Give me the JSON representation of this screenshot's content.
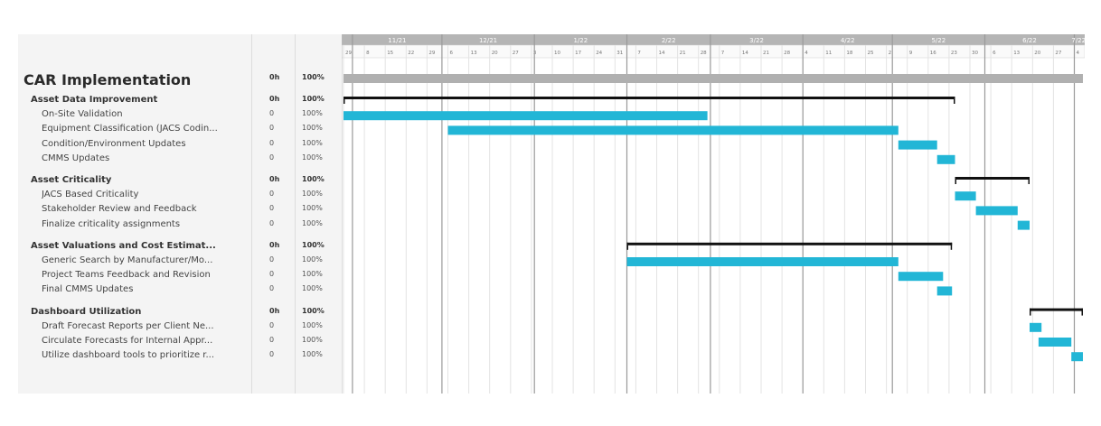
{
  "project": {
    "name": "CAR Implementation",
    "work": "0h",
    "complete": "100%"
  },
  "groups": [
    {
      "name": "Asset Data Improvement",
      "work": "0h",
      "complete": "100%",
      "tasks": [
        {
          "name": "On-Site Validation",
          "work": "0",
          "complete": "100%"
        },
        {
          "name": "Equipment Classification (JACS Codin...",
          "work": "0",
          "complete": "100%"
        },
        {
          "name": "Condition/Environment Updates",
          "work": "0",
          "complete": "100%"
        },
        {
          "name": "CMMS Updates",
          "work": "0",
          "complete": "100%"
        }
      ]
    },
    {
      "name": "Asset Criticality",
      "work": "0h",
      "complete": "100%",
      "tasks": [
        {
          "name": "JACS Based Criticality",
          "work": "0",
          "complete": "100%"
        },
        {
          "name": "Stakeholder Review and Feedback",
          "work": "0",
          "complete": "100%"
        },
        {
          "name": "Finalize criticality assignments",
          "work": "0",
          "complete": "100%"
        }
      ]
    },
    {
      "name": "Asset Valuations and Cost Estimat...",
      "work": "0h",
      "complete": "100%",
      "tasks": [
        {
          "name": "Generic Search by Manufacturer/Mo...",
          "work": "0",
          "complete": "100%"
        },
        {
          "name": "Project Teams Feedback and Revision",
          "work": "0",
          "complete": "100%"
        },
        {
          "name": "Final CMMS Updates",
          "work": "0",
          "complete": "100%"
        }
      ]
    },
    {
      "name": "Dashboard Utilization",
      "work": "0h",
      "complete": "100%",
      "tasks": [
        {
          "name": "Draft Forecast Reports per Client Ne...",
          "work": "0",
          "complete": "100%"
        },
        {
          "name": "Circulate Forecasts for Internal Appr...",
          "work": "0",
          "complete": "100%"
        },
        {
          "name": "Utilize dashboard tools to prioritize r...",
          "work": "0",
          "complete": "100%"
        }
      ]
    }
  ],
  "timeline": {
    "months": [
      "11/21",
      "12/21",
      "1/22",
      "2/22",
      "3/22",
      "4/22",
      "5/22",
      "6/22",
      "7/22"
    ],
    "day_ticks": [
      "29",
      "8",
      "15",
      "22",
      "29",
      "6",
      "13",
      "20",
      "27",
      "3",
      "10",
      "17",
      "24",
      "31",
      "7",
      "14",
      "21",
      "28",
      "7",
      "14",
      "21",
      "28",
      "4",
      "11",
      "18",
      "25",
      "2",
      "9",
      "16",
      "23",
      "30",
      "6",
      "13",
      "20",
      "27",
      "4"
    ]
  },
  "colors": {
    "task_bar": "#22b6d6",
    "summary_bar": "#111111",
    "project_bar": "#b0b0b0",
    "header_bg": "#b5b5b5",
    "panel_bg": "#f4f4f4"
  },
  "chart_data": {
    "type": "gantt",
    "x_axis": "time",
    "rows": [
      {
        "name": "CAR Implementation",
        "kind": "project",
        "start": "2021-10-29",
        "end": "2022-07-05"
      },
      {
        "name": "Asset Data Improvement",
        "kind": "summary",
        "start": "2021-10-29",
        "end": "2022-05-22"
      },
      {
        "name": "On-Site Validation",
        "kind": "task",
        "start": "2021-10-29",
        "end": "2022-02-28"
      },
      {
        "name": "Equipment Classification (JACS Codin...",
        "kind": "task",
        "start": "2021-12-03",
        "end": "2022-05-03"
      },
      {
        "name": "Condition/Environment Updates",
        "kind": "task",
        "start": "2022-05-03",
        "end": "2022-05-16"
      },
      {
        "name": "CMMS Updates",
        "kind": "task",
        "start": "2022-05-16",
        "end": "2022-05-22"
      },
      {
        "name": "Asset Criticality",
        "kind": "summary",
        "start": "2022-05-22",
        "end": "2022-06-16"
      },
      {
        "name": "JACS Based Criticality",
        "kind": "task",
        "start": "2022-05-22",
        "end": "2022-05-29"
      },
      {
        "name": "Stakeholder Review and Feedback",
        "kind": "task",
        "start": "2022-05-29",
        "end": "2022-06-12"
      },
      {
        "name": "Finalize criticality assignments",
        "kind": "task",
        "start": "2022-06-12",
        "end": "2022-06-16"
      },
      {
        "name": "Asset Valuations and Cost Estimat...",
        "kind": "summary",
        "start": "2022-02-01",
        "end": "2022-05-21"
      },
      {
        "name": "Generic Search by Manufacturer/Mo...",
        "kind": "task",
        "start": "2022-02-01",
        "end": "2022-05-03"
      },
      {
        "name": "Project Teams Feedback and Revision",
        "kind": "task",
        "start": "2022-05-03",
        "end": "2022-05-18"
      },
      {
        "name": "Final CMMS Updates",
        "kind": "task",
        "start": "2022-05-16",
        "end": "2022-05-21"
      },
      {
        "name": "Dashboard Utilization",
        "kind": "summary",
        "start": "2022-06-16",
        "end": "2022-07-07"
      },
      {
        "name": "Draft Forecast Reports per Client Ne...",
        "kind": "task",
        "start": "2022-06-16",
        "end": "2022-06-20"
      },
      {
        "name": "Circulate Forecasts for Internal Appr...",
        "kind": "task",
        "start": "2022-06-19",
        "end": "2022-06-30"
      },
      {
        "name": "Utilize dashboard tools to prioritize r...",
        "kind": "task",
        "start": "2022-06-30",
        "end": "2022-07-07"
      }
    ],
    "x_range": [
      "2021-10-29",
      "2022-07-07"
    ],
    "grid": true
  }
}
